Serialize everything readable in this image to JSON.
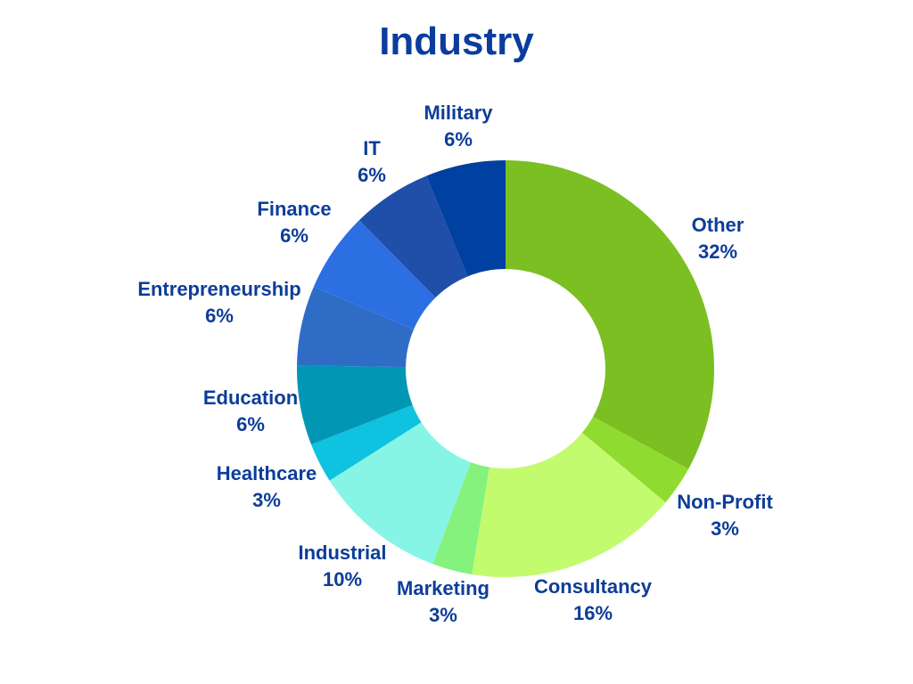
{
  "chart_data": {
    "type": "pie",
    "variant": "donut",
    "title": "Industry",
    "slices": [
      {
        "label": "Other",
        "value": 32,
        "text": "32%",
        "color": "#7bbf22"
      },
      {
        "label": "Non-Profit",
        "value": 3,
        "text": "3%",
        "color": "#8fdb2f"
      },
      {
        "label": "Consultancy",
        "value": 16,
        "text": "16%",
        "color": "#c2fb6e"
      },
      {
        "label": "Marketing",
        "value": 3,
        "text": "3%",
        "color": "#86f27e"
      },
      {
        "label": "Industrial",
        "value": 10,
        "text": "10%",
        "color": "#86f5e6"
      },
      {
        "label": "Healthcare",
        "value": 3,
        "text": "3%",
        "color": "#0ec2e0"
      },
      {
        "label": "Education",
        "value": 6,
        "text": "6%",
        "color": "#0096b4"
      },
      {
        "label": "Entrepreneurship",
        "value": 6,
        "text": "6%",
        "color": "#2e6cc6"
      },
      {
        "label": "Finance",
        "value": 6,
        "text": "6%",
        "color": "#2b6fe3"
      },
      {
        "label": "IT",
        "value": 6,
        "text": "6%",
        "color": "#1f4fa8"
      },
      {
        "label": "Military",
        "value": 6,
        "text": "6%",
        "color": "#0040a0"
      }
    ]
  }
}
